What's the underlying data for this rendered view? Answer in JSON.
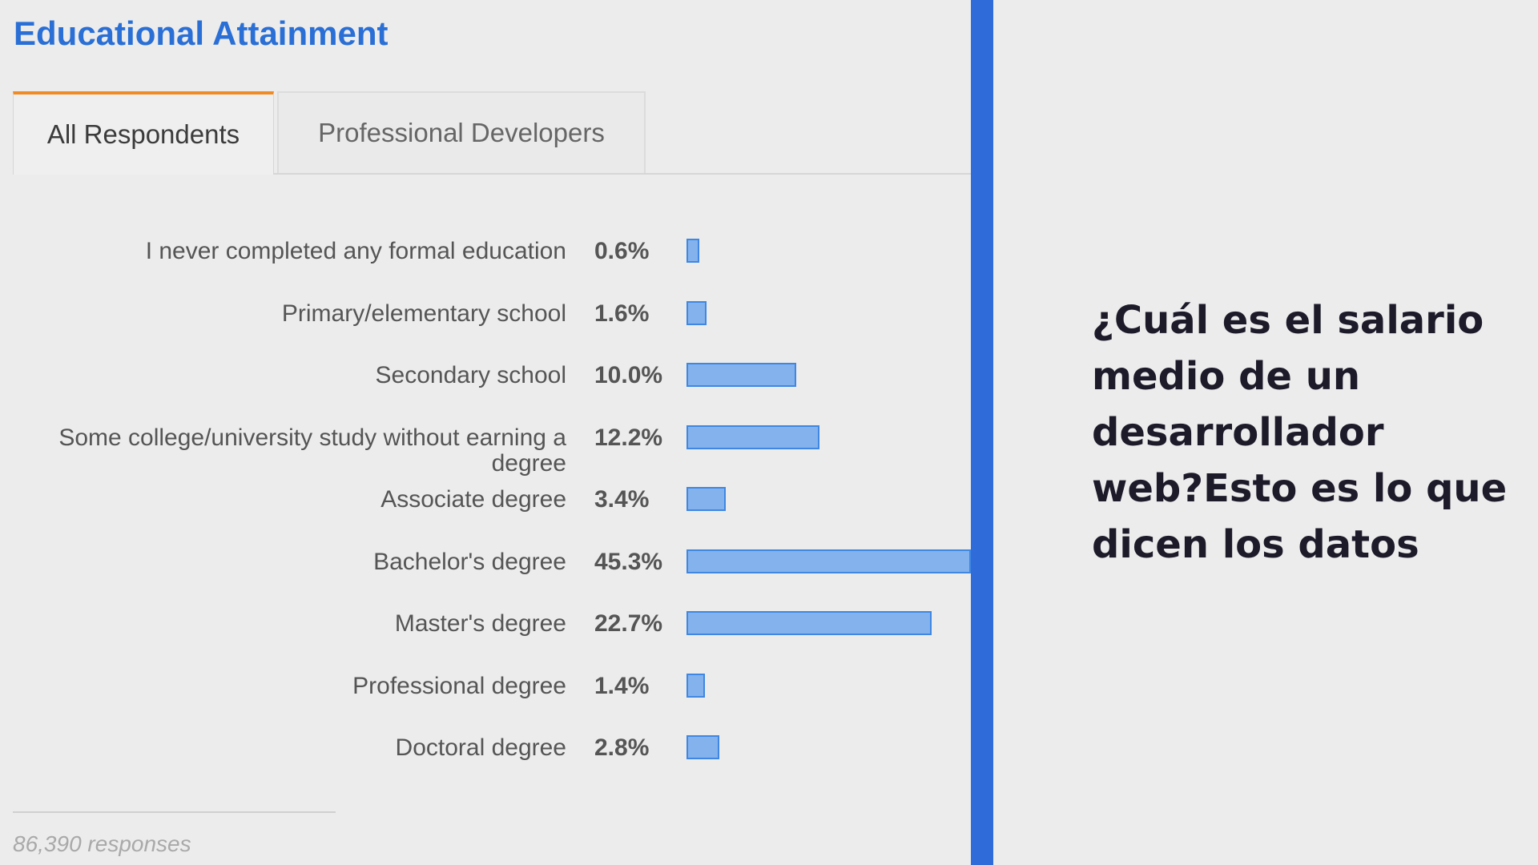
{
  "chart_data": {
    "type": "bar",
    "orientation": "horizontal",
    "title": "Educational Attainment",
    "tabs": [
      {
        "label": "All Respondents",
        "active": true
      },
      {
        "label": "Professional Developers",
        "active": false
      }
    ],
    "categories": [
      "I never completed any formal education",
      "Primary/elementary school",
      "Secondary school",
      "Some college/university study without earning a degree",
      "Associate degree",
      "Bachelor's degree",
      "Master's degree",
      "Professional degree",
      "Doctoral degree"
    ],
    "value_labels": [
      "0.6%",
      "1.6%",
      "10.0%",
      "12.2%",
      "3.4%",
      "45.3%",
      "22.7%",
      "1.4%",
      "2.8%"
    ],
    "values": [
      0.6,
      1.6,
      10.0,
      12.2,
      3.4,
      45.3,
      22.7,
      1.4,
      2.8
    ],
    "unit": "%",
    "bar_color": "#84b2ec",
    "bar_border_color": "#3f87e2",
    "footer": "86,390 responses"
  },
  "headline": "¿Cuál es el salario medio de un desarrollador web?Esto es lo que dicen los datos",
  "colors": {
    "title": "#2a6fd6",
    "tab_accent": "#f08a24",
    "divider": "#2f6bd9",
    "background": "#ececec"
  }
}
